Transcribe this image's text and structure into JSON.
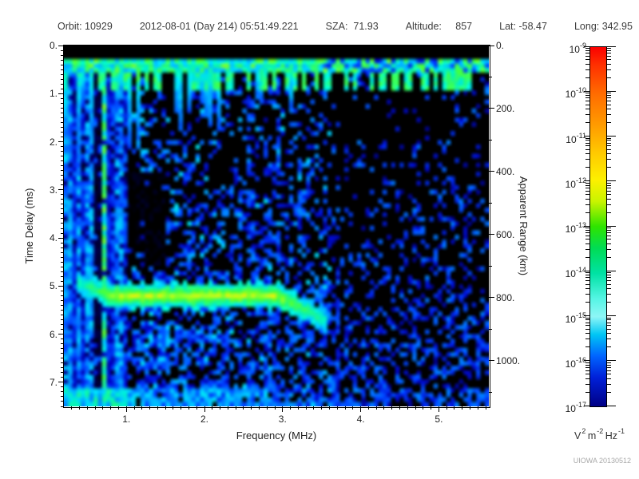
{
  "header": {
    "segments": [
      "Orbit: 10929",
      "2012-08-01 (Day 214) 05:51:49.221",
      "SZA:  71.93",
      "Altitude:     857",
      "Lat: -58.47",
      "Long: 342.95"
    ]
  },
  "watermark": "UIOWA 20130512",
  "chart_data": {
    "type": "heatmap",
    "description": "Radar sounder ionogram: received spectral density vs sounding frequency and echo time delay",
    "xlabel": "Frequency (MHz)",
    "ylabel_left": "Time Delay (ms)",
    "ylabel_right": "Apparent Range (km)",
    "x_range_mhz": [
      0.2,
      5.64
    ],
    "x_major_ticks": [
      1,
      2,
      3,
      4,
      5
    ],
    "x_major_labels": [
      "1.",
      "2.",
      "3.",
      "4.",
      "5."
    ],
    "x_minor_step_mhz": 0.1,
    "y_range_ms": [
      0,
      7.5
    ],
    "y_major_ticks": [
      0,
      1,
      2,
      3,
      4,
      5,
      6,
      7
    ],
    "y_major_labels": [
      "0.",
      "1.",
      "2.",
      "3.",
      "4.",
      "5.",
      "6.",
      "7."
    ],
    "y_minor_step_ms": 0.1,
    "right_range_km": [
      0,
      1145
    ],
    "right_major_ticks": [
      0,
      200,
      400,
      600,
      800,
      1000
    ],
    "right_major_labels": [
      "0.",
      "200.",
      "400.",
      "600.",
      "800.",
      "1000."
    ],
    "right_minor_step_km": 100,
    "colorbar": {
      "scale": "log",
      "exponents": [
        -9,
        -10,
        -11,
        -12,
        -13,
        -14,
        -15,
        -16,
        -17
      ],
      "top_value": "1e-9",
      "bottom_value": "1e-17",
      "units": {
        "b1": "V",
        "s1": "2",
        "b2": "m",
        "s2": "-2",
        "b3": "Hz",
        "s3": "-1"
      },
      "gradient_stops": [
        [
          0.0,
          "#fb0000"
        ],
        [
          0.05,
          "#ff3000"
        ],
        [
          0.13,
          "#ff6c00"
        ],
        [
          0.22,
          "#ff9d00"
        ],
        [
          0.3,
          "#ffcc00"
        ],
        [
          0.37,
          "#fdf000"
        ],
        [
          0.43,
          "#c8f400"
        ],
        [
          0.5,
          "#2ee400"
        ],
        [
          0.56,
          "#00dc55"
        ],
        [
          0.63,
          "#00e2a4"
        ],
        [
          0.7,
          "#55f5e4"
        ],
        [
          0.75,
          "#8ef6f6"
        ],
        [
          0.8,
          "#00c6f4"
        ],
        [
          0.86,
          "#0064ff"
        ],
        [
          0.92,
          "#0020d8"
        ],
        [
          1.0,
          "#000085"
        ]
      ]
    },
    "colormap_stops": [
      [
        0.0,
        0,
        0,
        0
      ],
      [
        0.08,
        0,
        0,
        110
      ],
      [
        0.18,
        0,
        10,
        200
      ],
      [
        0.3,
        0,
        70,
        255
      ],
      [
        0.42,
        0,
        150,
        255
      ],
      [
        0.52,
        0,
        215,
        255
      ],
      [
        0.6,
        0,
        240,
        200
      ],
      [
        0.68,
        40,
        250,
        120
      ],
      [
        0.76,
        70,
        255,
        60
      ],
      [
        0.84,
        180,
        255,
        30
      ],
      [
        0.92,
        255,
        235,
        0
      ],
      [
        1.0,
        255,
        80,
        0
      ]
    ],
    "features": {
      "seed": 1337,
      "grid": {
        "cols": 100,
        "rows": 80
      },
      "top_blank_ms": 0.27,
      "surface_echo_ms": [
        0.3,
        0.58
      ],
      "rfi_max_mhz": 1.02,
      "rfi_gap_mhz": [
        0.57,
        0.7
      ],
      "dark_patch": {
        "mhz": [
          1.0,
          1.5
        ],
        "ms": [
          2.6,
          4.65
        ]
      },
      "trace": {
        "mhz": [
          0.35,
          3.55
        ],
        "flat_ms": 5.2,
        "left_rise": [
          0.8,
          0.28,
          0.45
        ],
        "right_dip": [
          2.9,
          0.5,
          0.65
        ]
      },
      "second_echo": {
        "mhz": [
          1.15,
          2.35
        ],
        "ms": 6.1
      },
      "stripe_cols_mhz": [
        2.55,
        2.95
      ],
      "bottom_band_ms": 7.08
    }
  }
}
